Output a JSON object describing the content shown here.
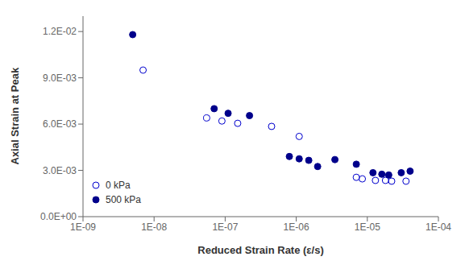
{
  "chart_data": {
    "type": "scatter",
    "xlabel": "Reduced Strain Rate (ε/s)",
    "ylabel": "Axial Strain at Peak",
    "log": "x",
    "grid": false,
    "legend": "lower left",
    "xlim": [
      1e-09,
      0.0001
    ],
    "xticks": [
      {
        "value": 1e-09,
        "label": "1E-09"
      },
      {
        "value": 1e-08,
        "label": "1E-08"
      },
      {
        "value": 1e-07,
        "label": "1E-07"
      },
      {
        "value": 1e-06,
        "label": "1E-06"
      },
      {
        "value": 1e-05,
        "label": "1E-05"
      },
      {
        "value": 0.0001,
        "label": "1E-04"
      }
    ],
    "ylim": [
      0.0,
      0.013
    ],
    "yticks": [
      {
        "value": 0.0,
        "label": "0.0E+00"
      },
      {
        "value": 0.003,
        "label": "3.0E-03"
      },
      {
        "value": 0.006,
        "label": "6.0E-03"
      },
      {
        "value": 0.009,
        "label": "9.0E-03"
      },
      {
        "value": 0.012,
        "label": "1.2E-02"
      }
    ],
    "series": [
      {
        "name": "0 kPa",
        "color": "#0000cd",
        "marker": "open_circle",
        "x": [
          7e-09,
          5.5e-08,
          9e-08,
          1.5e-07,
          4.5e-07,
          1.1e-06,
          7e-06,
          8.5e-06,
          1.3e-05,
          1.8e-05,
          2.2e-05,
          3.5e-05
        ],
        "values": [
          0.0095,
          0.0064,
          0.0062,
          0.00605,
          0.00585,
          0.0052,
          0.00255,
          0.00245,
          0.00235,
          0.00235,
          0.0023,
          0.0023
        ]
      },
      {
        "name": "500 kPa",
        "color": "#00008B",
        "marker": "circle",
        "x": [
          5e-09,
          7e-08,
          1.1e-07,
          2.2e-07,
          8e-07,
          1.1e-06,
          1.5e-06,
          2e-06,
          3.5e-06,
          7e-06,
          1.2e-05,
          1.6e-05,
          2e-05,
          3e-05,
          4e-05
        ],
        "values": [
          0.0118,
          0.007,
          0.0067,
          0.00655,
          0.0039,
          0.00375,
          0.00365,
          0.00325,
          0.0037,
          0.0034,
          0.00285,
          0.00275,
          0.0027,
          0.00285,
          0.00295
        ]
      }
    ]
  }
}
